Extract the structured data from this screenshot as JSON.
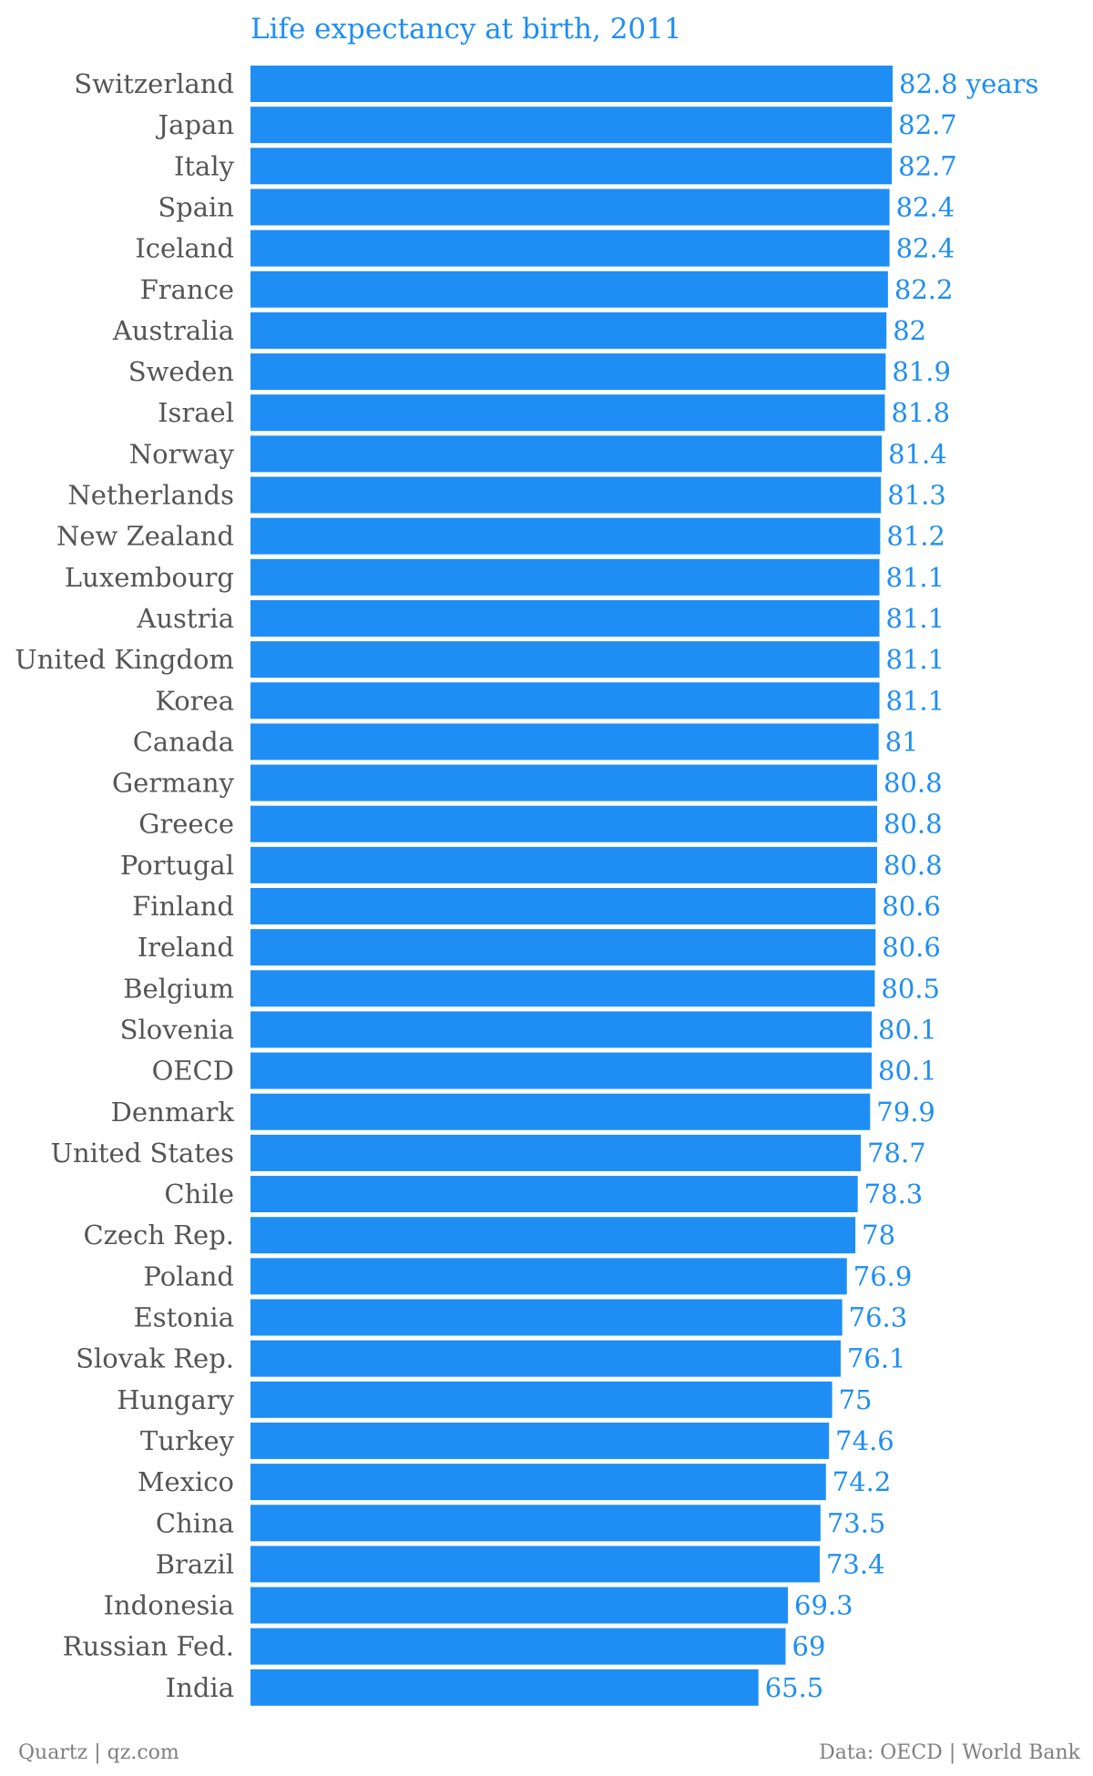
{
  "chart_data": {
    "type": "bar",
    "orientation": "horizontal",
    "title": "Life expectancy at birth, 2011",
    "unit_label": "years",
    "categories": [
      "Switzerland",
      "Japan",
      "Italy",
      "Spain",
      "Iceland",
      "France",
      "Australia",
      "Sweden",
      "Israel",
      "Norway",
      "Netherlands",
      "New Zealand",
      "Luxembourg",
      "Austria",
      "United Kingdom",
      "Korea",
      "Canada",
      "Germany",
      "Greece",
      "Portugal",
      "Finland",
      "Ireland",
      "Belgium",
      "Slovenia",
      "OECD",
      "Denmark",
      "United States",
      "Chile",
      "Czech Rep.",
      "Poland",
      "Estonia",
      "Slovak Rep.",
      "Hungary",
      "Turkey",
      "Mexico",
      "China",
      "Brazil",
      "Indonesia",
      "Russian Fed.",
      "India"
    ],
    "values": [
      82.8,
      82.7,
      82.7,
      82.4,
      82.4,
      82.2,
      82,
      81.9,
      81.8,
      81.4,
      81.3,
      81.2,
      81.1,
      81.1,
      81.1,
      81.1,
      81,
      80.8,
      80.8,
      80.8,
      80.6,
      80.6,
      80.5,
      80.1,
      80.1,
      79.9,
      78.7,
      78.3,
      78,
      76.9,
      76.3,
      76.1,
      75,
      74.6,
      74.2,
      73.5,
      73.4,
      69.3,
      69,
      65.5
    ],
    "value_labels": [
      "82.8 years",
      "82.7",
      "82.7",
      "82.4",
      "82.4",
      "82.2",
      "82",
      "81.9",
      "81.8",
      "81.4",
      "81.3",
      "81.2",
      "81.1",
      "81.1",
      "81.1",
      "81.1",
      "81",
      "80.8",
      "80.8",
      "80.8",
      "80.6",
      "80.6",
      "80.5",
      "80.1",
      "80.1",
      "79.9",
      "78.7",
      "78.3",
      "78",
      "76.9",
      "76.3",
      "76.1",
      "75",
      "74.6",
      "74.2",
      "73.5",
      "73.4",
      "69.3",
      "69",
      "65.5"
    ],
    "xlim": [
      0,
      82.8
    ],
    "bar_color": "#1e8ef5",
    "label_color": "#555555",
    "value_color": "#1e8ef5",
    "grid": false,
    "legend": "none"
  },
  "footer": {
    "source_left": "Quartz | qz.com",
    "source_right": "Data: OECD | World Bank"
  }
}
